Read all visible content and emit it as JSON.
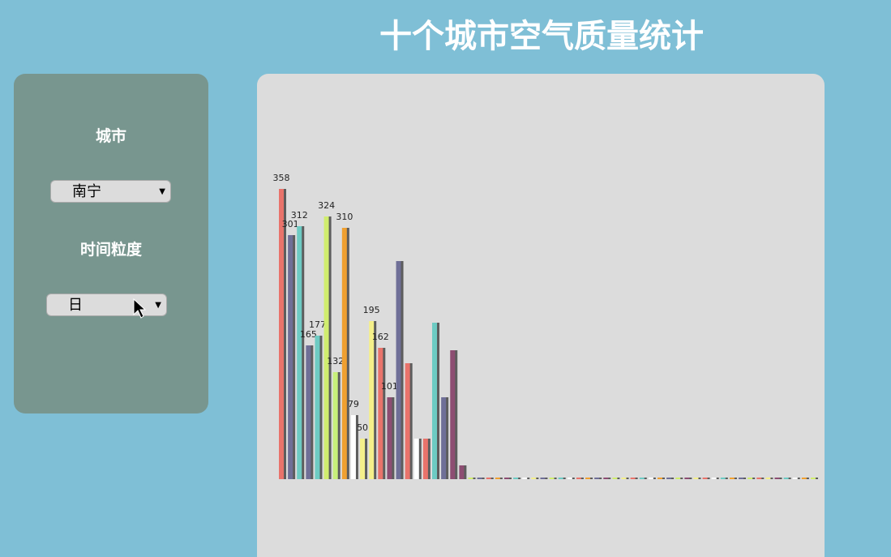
{
  "title": "十个城市空气质量统计",
  "controls": {
    "city_label": "城市",
    "city_value": "南宁",
    "granularity_label": "时间粒度",
    "granularity_value": "日"
  },
  "chart_data": {
    "type": "bar",
    "values": [
      358,
      301,
      312,
      165,
      177,
      324,
      132,
      310,
      79,
      50,
      195,
      162,
      101,
      269,
      143,
      50,
      50,
      193,
      101,
      159,
      17,
      2,
      2,
      2,
      2,
      2,
      2,
      2,
      2,
      2,
      2,
      2,
      2,
      2,
      2,
      2,
      2,
      2,
      2,
      2,
      2,
      2,
      2,
      2,
      2,
      2,
      2,
      2,
      2,
      2,
      2,
      2,
      2,
      2,
      2,
      2,
      2,
      2,
      2,
      2
    ],
    "value_labels": [
      "358",
      "301",
      "312",
      "165",
      "177",
      "324",
      "132",
      "310",
      "79",
      "50",
      "195",
      "162",
      "101",
      null,
      null,
      null,
      null,
      null,
      null,
      null,
      null,
      null,
      null,
      null,
      null,
      null,
      null,
      null,
      null,
      null,
      null,
      null,
      null,
      null,
      null,
      null,
      null,
      null,
      null,
      null,
      null,
      null,
      null,
      null,
      null,
      null,
      null,
      null,
      null,
      null,
      null,
      null,
      null,
      null,
      null,
      null,
      null,
      null,
      null,
      null
    ],
    "colors": [
      "#e9736b",
      "#6f6f97",
      "#6dcbc3",
      "#6f6f97",
      "#6dcbc3",
      "#d0ed6e",
      "#c8f07a",
      "#f0a030",
      "#ffffff",
      "#f5f08a",
      "#f5f08a",
      "#e9736b",
      "#8d4d72",
      "#6f6f97",
      "#e9736b",
      "#ffffff",
      "#e9736b",
      "#6dcbc3",
      "#6f6f97",
      "#8d4d72",
      "#8d4d72",
      "#d0ed6e",
      "#6f6f97",
      "#e9736b",
      "#f0a030",
      "#8d4d72",
      "#6dcbc3",
      "#ffffff",
      "#f5f08a",
      "#6f6f97",
      "#d0ed6e",
      "#6dcbc3",
      "#ffffff",
      "#e9736b",
      "#f0a030",
      "#6f6f97",
      "#8d4d72",
      "#d0ed6e",
      "#f5f08a",
      "#e9736b",
      "#6dcbc3",
      "#ffffff",
      "#f0a030",
      "#6f6f97",
      "#d0ed6e",
      "#8d4d72",
      "#f5f08a",
      "#e9736b",
      "#ffffff",
      "#6dcbc3",
      "#f0a030",
      "#6f6f97",
      "#d0ed6e",
      "#e9736b",
      "#f5f08a",
      "#8d4d72",
      "#6dcbc3",
      "#ffffff",
      "#f0a030",
      "#d0ed6e"
    ],
    "ylim": [
      0,
      500
    ]
  }
}
